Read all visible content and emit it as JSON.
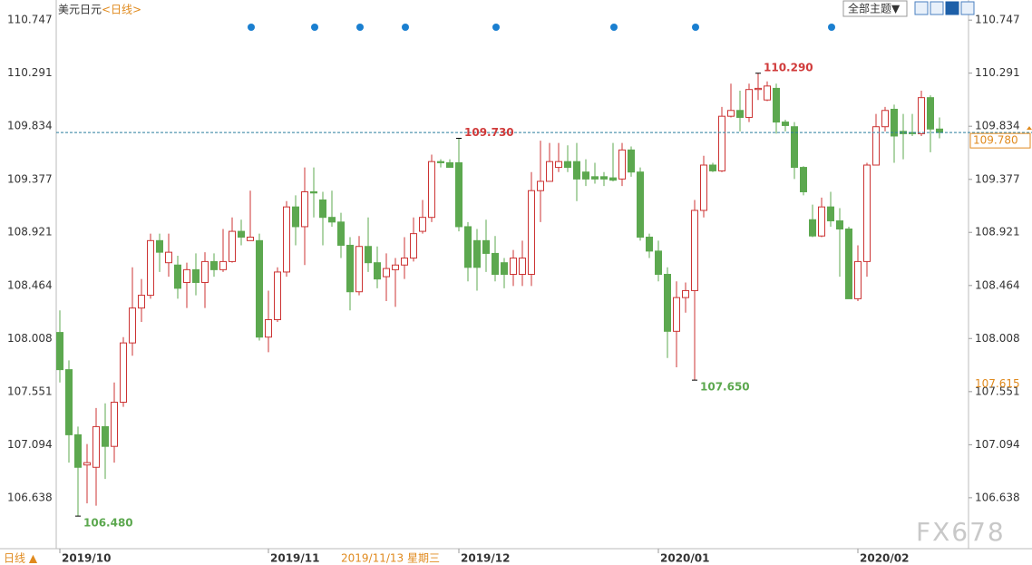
{
  "chart_data": {
    "type": "candlestick",
    "title": "美元日元",
    "period": "<日线>",
    "period_button": "日线 ▲",
    "theme_button": "全部主题▼",
    "watermark": "FX678",
    "cursor_date": "2019/11/13 星期三",
    "cursor_price": 107.615,
    "last_price": {
      "value": 109.78,
      "label": "109.780"
    },
    "up_color": "#cc3333",
    "down_color": "#5ca84f",
    "ylim": [
      106.2,
      110.92
    ],
    "yticks": [
      110.747,
      110.291,
      109.834,
      109.377,
      108.921,
      108.464,
      108.008,
      107.551,
      107.094,
      106.638
    ],
    "annotations": [
      {
        "label": "106.480",
        "value": 106.48
      },
      {
        "label": "109.730",
        "value": 109.73
      },
      {
        "label": "110.290",
        "value": 110.29
      },
      {
        "label": "107.650",
        "value": 107.65
      }
    ],
    "categories": [
      "2019/10",
      null,
      null,
      null,
      null,
      null,
      null,
      null,
      null,
      null,
      null,
      null,
      null,
      null,
      null,
      null,
      null,
      null,
      null,
      null,
      null,
      null,
      null,
      "2019/11",
      null,
      null,
      null,
      null,
      null,
      null,
      null,
      null,
      null,
      null,
      null,
      null,
      null,
      null,
      null,
      null,
      null,
      null,
      null,
      null,
      "2019/12",
      null,
      null,
      null,
      null,
      null,
      null,
      null,
      null,
      null,
      null,
      null,
      null,
      null,
      null,
      null,
      null,
      null,
      null,
      null,
      null,
      null,
      "2020/01",
      null,
      null,
      null,
      null,
      null,
      null,
      null,
      null,
      null,
      null,
      null,
      null,
      null,
      null,
      null,
      null,
      null,
      null,
      null,
      null,
      null,
      "2020/02",
      null,
      null,
      null,
      null,
      null,
      null,
      null,
      null,
      null
    ],
    "open": [
      108.06,
      107.74,
      107.18,
      106.92,
      106.9,
      107.25,
      107.08,
      107.46,
      107.97,
      108.27,
      108.38,
      108.85,
      108.66,
      108.64,
      108.49,
      108.6,
      108.49,
      108.67,
      108.6,
      108.67,
      108.93,
      108.85,
      108.85,
      108.02,
      108.17,
      108.58,
      109.14,
      108.97,
      109.27,
      109.2,
      109.05,
      109.01,
      108.81,
      108.41,
      108.8,
      108.66,
      108.54,
      108.6,
      108.64,
      108.7,
      108.93,
      109.05,
      109.53,
      109.52,
      109.52,
      108.97,
      108.85,
      108.85,
      108.74,
      108.66,
      108.56,
      108.56,
      108.56,
      109.28,
      109.36,
      109.48,
      109.53,
      109.53,
      109.44,
      109.4,
      109.4,
      109.39,
      109.38,
      109.63,
      109.44,
      108.88,
      108.76,
      108.56,
      108.07,
      108.36,
      108.42,
      109.11,
      109.5,
      109.45,
      109.92,
      109.97,
      109.91,
      110.15,
      110.06,
      110.16,
      109.87,
      109.83,
      109.48,
      109.03,
      108.89,
      109.14,
      109.02,
      108.95,
      108.35,
      108.67,
      109.5,
      109.83,
      109.98,
      109.79,
      109.78,
      109.77,
      110.08,
      109.81
    ],
    "high": [
      108.25,
      107.82,
      107.25,
      107.1,
      107.41,
      107.45,
      107.63,
      108.02,
      108.62,
      108.52,
      108.91,
      108.91,
      108.91,
      108.72,
      108.66,
      108.74,
      108.75,
      108.74,
      108.95,
      109.05,
      109.03,
      109.28,
      108.91,
      108.42,
      108.62,
      109.19,
      109.24,
      109.48,
      109.48,
      109.27,
      109.28,
      109.09,
      108.88,
      108.89,
      109.05,
      108.8,
      108.74,
      108.7,
      108.88,
      109.05,
      109.2,
      109.59,
      109.55,
      109.55,
      109.73,
      109.01,
      108.95,
      109.03,
      108.89,
      108.7,
      108.77,
      108.85,
      109.44,
      109.71,
      109.69,
      109.69,
      109.67,
      109.69,
      109.55,
      109.52,
      109.44,
      109.69,
      109.69,
      109.66,
      109.48,
      108.91,
      108.85,
      108.62,
      108.5,
      108.49,
      109.2,
      109.58,
      109.52,
      110.0,
      110.2,
      110.14,
      110.2,
      110.29,
      110.22,
      110.2,
      109.89,
      109.87,
      109.49,
      109.16,
      109.22,
      109.27,
      109.13,
      108.97,
      108.81,
      109.52,
      109.94,
      110.0,
      110.02,
      109.94,
      109.94,
      110.14,
      110.1,
      109.91
    ],
    "low": [
      107.63,
      106.94,
      106.48,
      106.59,
      106.57,
      106.8,
      106.94,
      107.42,
      107.86,
      108.15,
      108.35,
      108.58,
      108.54,
      108.35,
      108.27,
      108.38,
      108.27,
      108.54,
      108.58,
      108.66,
      108.81,
      108.85,
      107.99,
      107.89,
      108.15,
      108.54,
      108.81,
      108.64,
      109.05,
      108.81,
      108.97,
      108.7,
      108.25,
      108.38,
      108.58,
      108.44,
      108.33,
      108.28,
      108.52,
      108.67,
      108.91,
      109.01,
      109.48,
      109.48,
      108.93,
      108.5,
      108.42,
      108.58,
      108.5,
      108.44,
      108.46,
      108.46,
      108.46,
      109.01,
      109.36,
      109.44,
      109.44,
      109.19,
      109.32,
      109.34,
      109.32,
      109.36,
      109.32,
      109.4,
      108.85,
      108.7,
      108.5,
      107.84,
      107.76,
      108.23,
      107.65,
      109.05,
      109.44,
      109.44,
      109.91,
      109.79,
      109.87,
      110.06,
      110.05,
      109.77,
      109.79,
      109.38,
      109.24,
      108.88,
      108.88,
      108.97,
      108.54,
      108.35,
      108.33,
      108.54,
      109.5,
      109.79,
      109.52,
      109.55,
      109.75,
      109.75,
      109.61,
      109.73
    ],
    "close": [
      107.74,
      107.18,
      106.9,
      106.94,
      107.25,
      107.08,
      107.46,
      107.97,
      108.27,
      108.38,
      108.85,
      108.75,
      108.75,
      108.44,
      108.6,
      108.49,
      108.67,
      108.6,
      108.67,
      108.93,
      108.88,
      108.88,
      108.02,
      108.17,
      108.58,
      109.14,
      108.97,
      109.27,
      109.26,
      109.05,
      109.01,
      108.81,
      108.41,
      108.8,
      108.66,
      108.52,
      108.61,
      108.64,
      108.7,
      108.91,
      109.05,
      109.53,
      109.52,
      109.48,
      108.97,
      108.62,
      108.62,
      108.74,
      108.56,
      108.56,
      108.7,
      108.7,
      109.28,
      109.36,
      109.53,
      109.53,
      109.48,
      109.38,
      109.38,
      109.38,
      109.38,
      109.37,
      109.63,
      109.44,
      108.88,
      108.76,
      108.56,
      108.07,
      108.36,
      108.42,
      109.11,
      109.5,
      109.45,
      109.92,
      109.97,
      109.91,
      110.15,
      110.16,
      110.18,
      109.87,
      109.84,
      109.48,
      109.27,
      108.89,
      109.14,
      109.02,
      108.95,
      108.35,
      108.67,
      109.5,
      109.83,
      109.97,
      109.75,
      109.77,
      109.77,
      110.08,
      109.81,
      109.78
    ]
  }
}
